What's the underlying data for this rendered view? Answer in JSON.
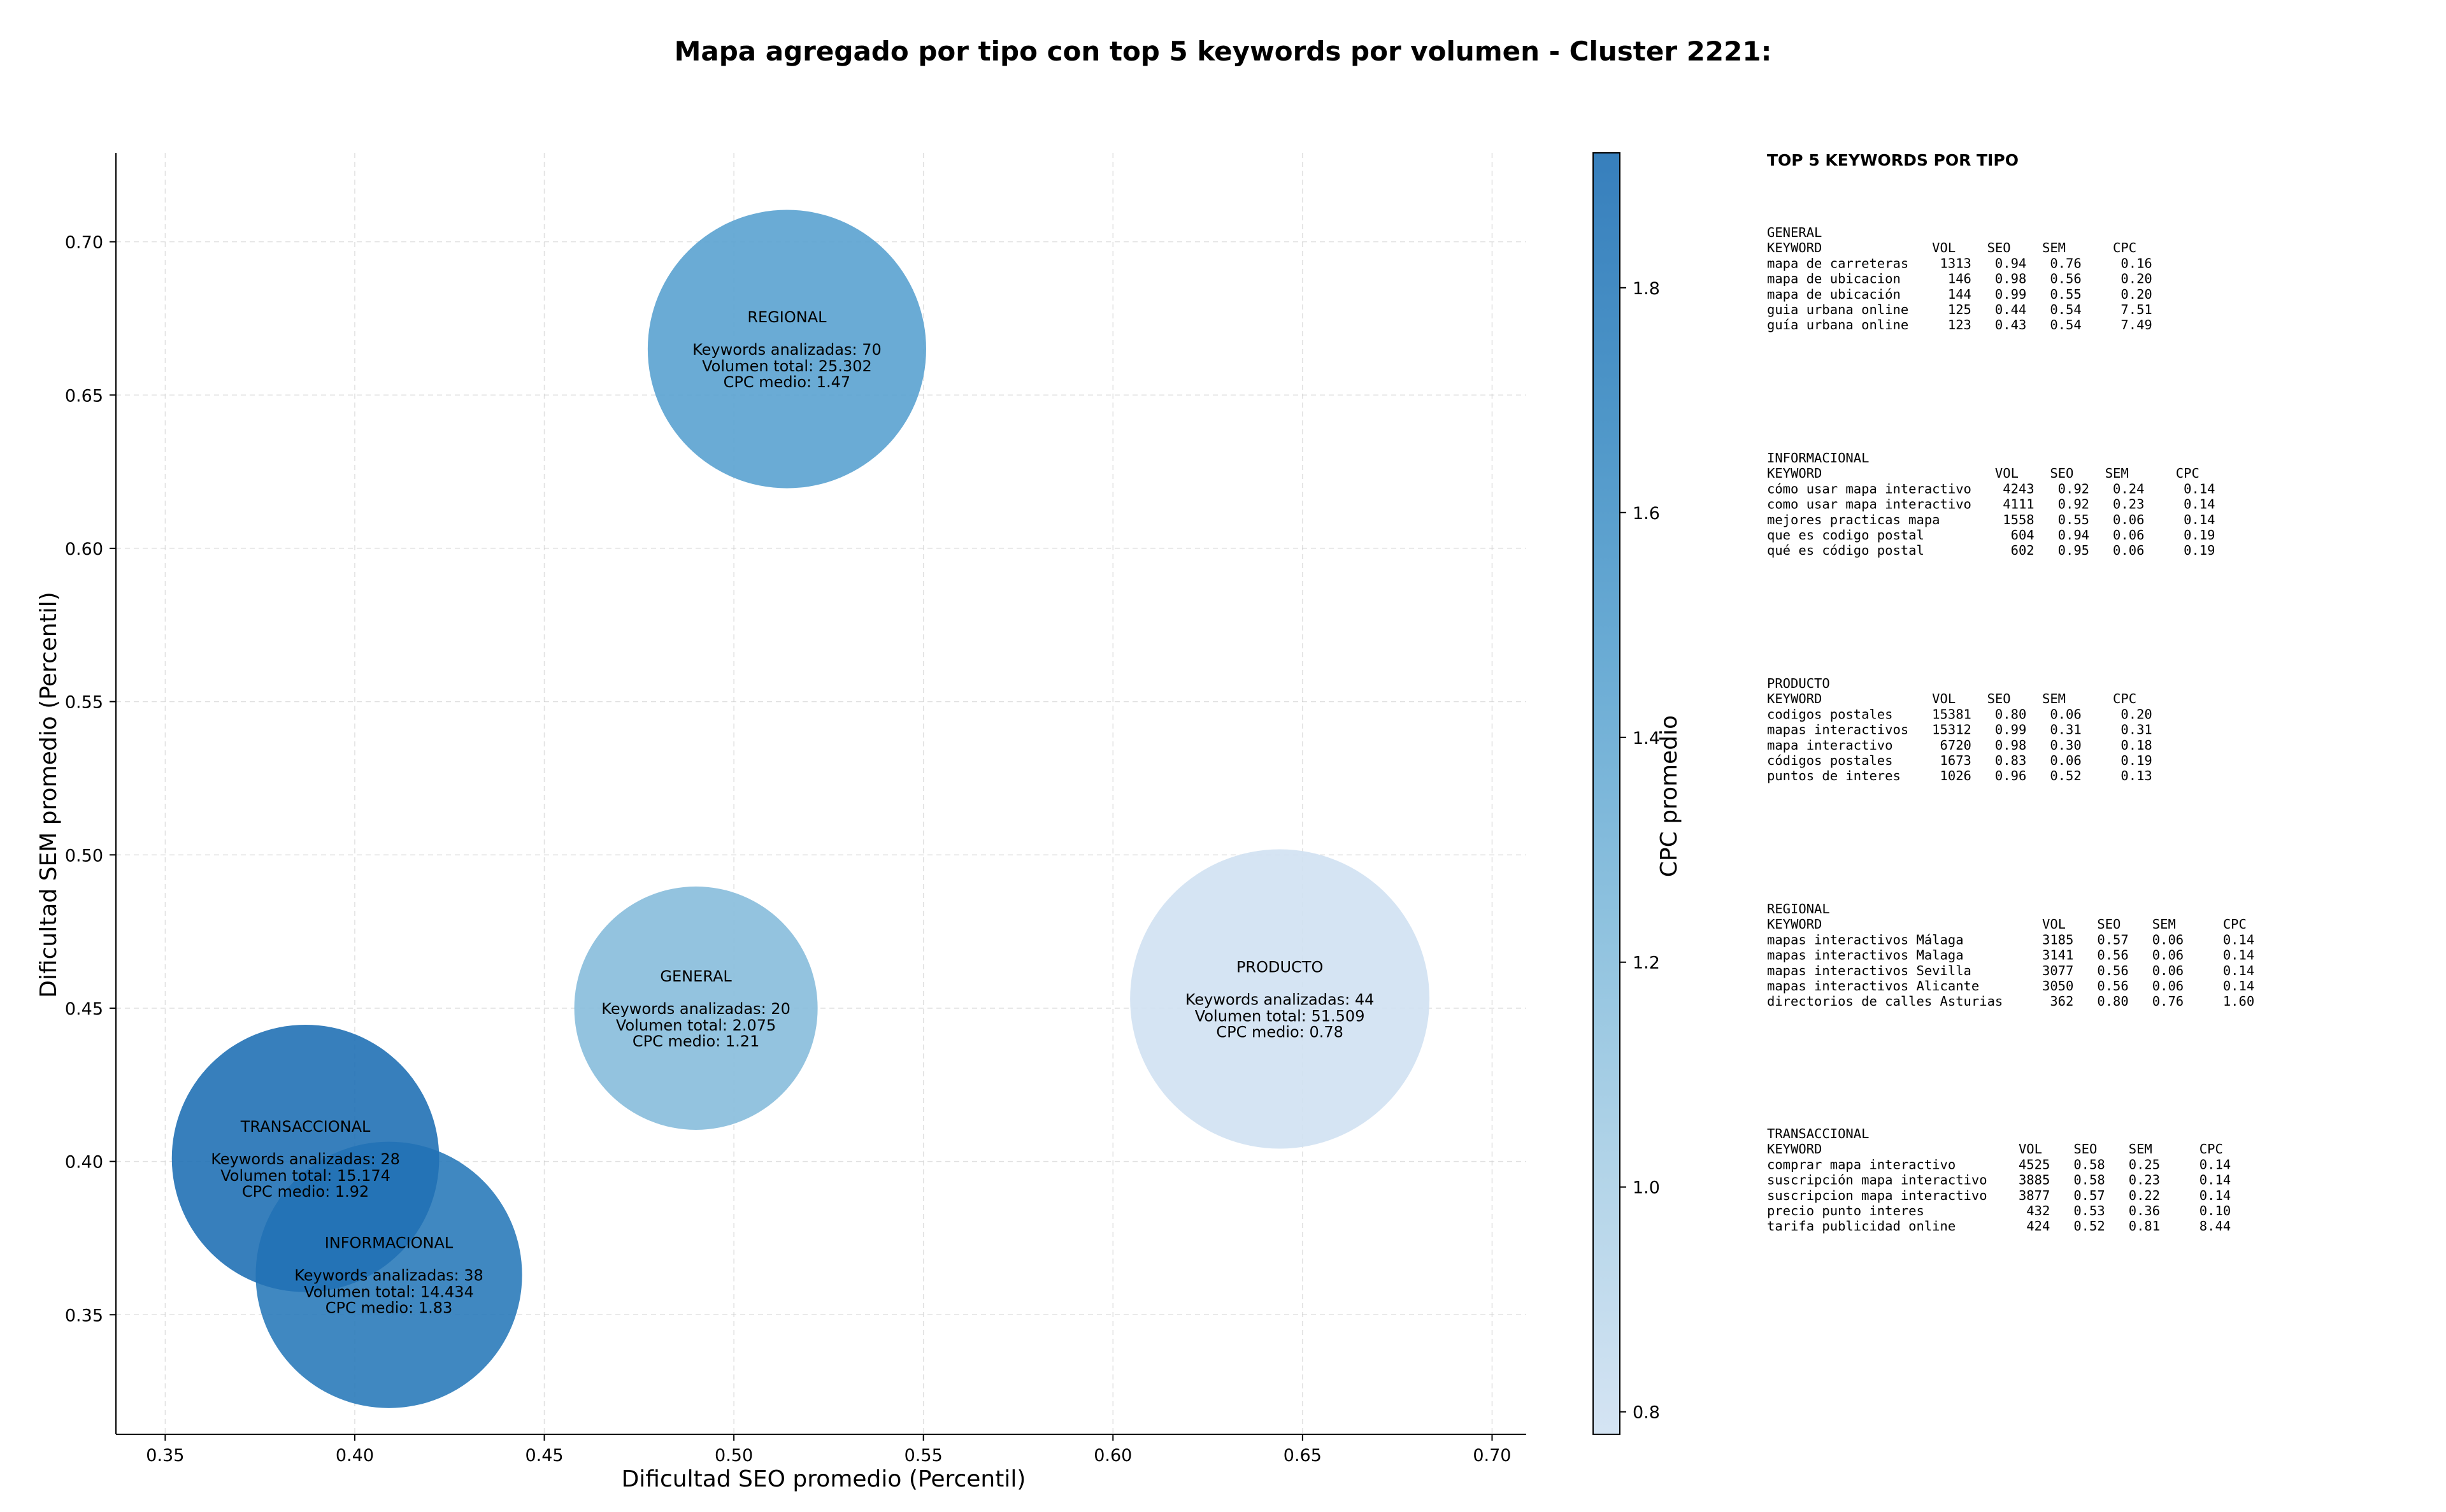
{
  "chart_data": {
    "type": "scatter",
    "title": "Mapa agregado por tipo con top 5 keywords por volumen - Cluster 2221:",
    "xlabel": "Dificultad SEO promedio (Percentil)",
    "ylabel": "Dificultad SEM promedio (Percentil)",
    "xlim": [
      0.337,
      0.709
    ],
    "ylim": [
      0.311,
      0.729
    ],
    "xticks": [
      "0.35",
      "0.40",
      "0.45",
      "0.50",
      "0.55",
      "0.60",
      "0.65",
      "0.70"
    ],
    "yticks": [
      "0.35",
      "0.40",
      "0.45",
      "0.50",
      "0.55",
      "0.60",
      "0.65",
      "0.70"
    ],
    "grid": true,
    "colorbar": {
      "label": "CPC promedio",
      "range": [
        0.78,
        1.92
      ],
      "ticks": [
        "0.8",
        "1.0",
        "1.2",
        "1.4",
        "1.6",
        "1.8"
      ],
      "colormap": [
        "#d0e1f2",
        "#abd0e6",
        "#82bbdb",
        "#5ba3d0",
        "#3a8ac2",
        "#2171b5"
      ]
    },
    "points": [
      {
        "name": "REGIONAL",
        "x": 0.514,
        "y": 0.665,
        "keywords": 70,
        "volume": 25302,
        "cpc": 1.47,
        "lines": [
          "REGIONAL",
          "Keywords analizadas: 70",
          "Volumen total: 25.302",
          "CPC medio: 1.47"
        ]
      },
      {
        "name": "PRODUCTO",
        "x": 0.644,
        "y": 0.453,
        "keywords": 44,
        "volume": 51509,
        "cpc": 0.78,
        "lines": [
          "PRODUCTO",
          "Keywords analizadas: 44",
          "Volumen total: 51.509",
          "CPC medio: 0.78"
        ]
      },
      {
        "name": "GENERAL",
        "x": 0.49,
        "y": 0.45,
        "keywords": 20,
        "volume": 2075,
        "cpc": 1.21,
        "lines": [
          "GENERAL",
          "Keywords analizadas: 20",
          "Volumen total: 2.075",
          "CPC medio: 1.21"
        ]
      },
      {
        "name": "INFORMACIONAL",
        "x": 0.409,
        "y": 0.363,
        "keywords": 38,
        "volume": 14434,
        "cpc": 1.83,
        "lines": [
          "INFORMACIONAL",
          "Keywords analizadas: 38",
          "Volumen total: 14.434",
          "CPC medio: 1.83"
        ]
      },
      {
        "name": "TRANSACCIONAL",
        "x": 0.387,
        "y": 0.401,
        "keywords": 28,
        "volume": 15174,
        "cpc": 1.92,
        "lines": [
          "TRANSACCIONAL",
          "Keywords analizadas: 28",
          "Volumen total: 15.174",
          "CPC medio: 1.92"
        ]
      }
    ],
    "side_panel": {
      "title": "TOP 5 KEYWORDS POR TIPO",
      "groups": [
        {
          "name": "GENERAL",
          "header": "KEYWORD              VOL    SEO    SEM      CPC",
          "rows": [
            "mapa de carreteras    1313   0.94   0.76     0.16",
            "mapa de ubicacion      146   0.98   0.56     0.20",
            "mapa de ubicación      144   0.99   0.55     0.20",
            "guia urbana online     125   0.44   0.54     7.51",
            "guía urbana online     123   0.43   0.54     7.49"
          ]
        },
        {
          "name": "INFORMACIONAL",
          "header": "KEYWORD                      VOL    SEO    SEM      CPC",
          "rows": [
            "cómo usar mapa interactivo    4243   0.92   0.24     0.14",
            "como usar mapa interactivo    4111   0.92   0.23     0.14",
            "mejores practicas mapa        1558   0.55   0.06     0.14",
            "que es codigo postal           604   0.94   0.06     0.19",
            "qué es código postal           602   0.95   0.06     0.19"
          ]
        },
        {
          "name": "PRODUCTO",
          "header": "KEYWORD              VOL    SEO    SEM      CPC",
          "rows": [
            "codigos postales     15381   0.80   0.06     0.20",
            "mapas interactivos   15312   0.99   0.31     0.31",
            "mapa interactivo      6720   0.98   0.30     0.18",
            "códigos postales      1673   0.83   0.06     0.19",
            "puntos de interes     1026   0.96   0.52     0.13"
          ]
        },
        {
          "name": "REGIONAL",
          "header": "KEYWORD                            VOL    SEO    SEM      CPC",
          "rows": [
            "mapas interactivos Málaga          3185   0.57   0.06     0.14",
            "mapas interactivos Malaga          3141   0.56   0.06     0.14",
            "mapas interactivos Sevilla         3077   0.56   0.06     0.14",
            "mapas interactivos Alicante        3050   0.56   0.06     0.14",
            "directorios de calles Asturias      362   0.80   0.76     1.60"
          ]
        },
        {
          "name": "TRANSACCIONAL",
          "header": "KEYWORD                         VOL    SEO    SEM      CPC",
          "rows": [
            "comprar mapa interactivo        4525   0.58   0.25     0.14",
            "suscripción mapa interactivo    3885   0.58   0.23     0.14",
            "suscripcion mapa interactivo    3877   0.57   0.22     0.14",
            "precio punto interes             432   0.53   0.36     0.10",
            "tarifa publicidad online         424   0.52   0.81     8.44"
          ]
        }
      ]
    }
  }
}
